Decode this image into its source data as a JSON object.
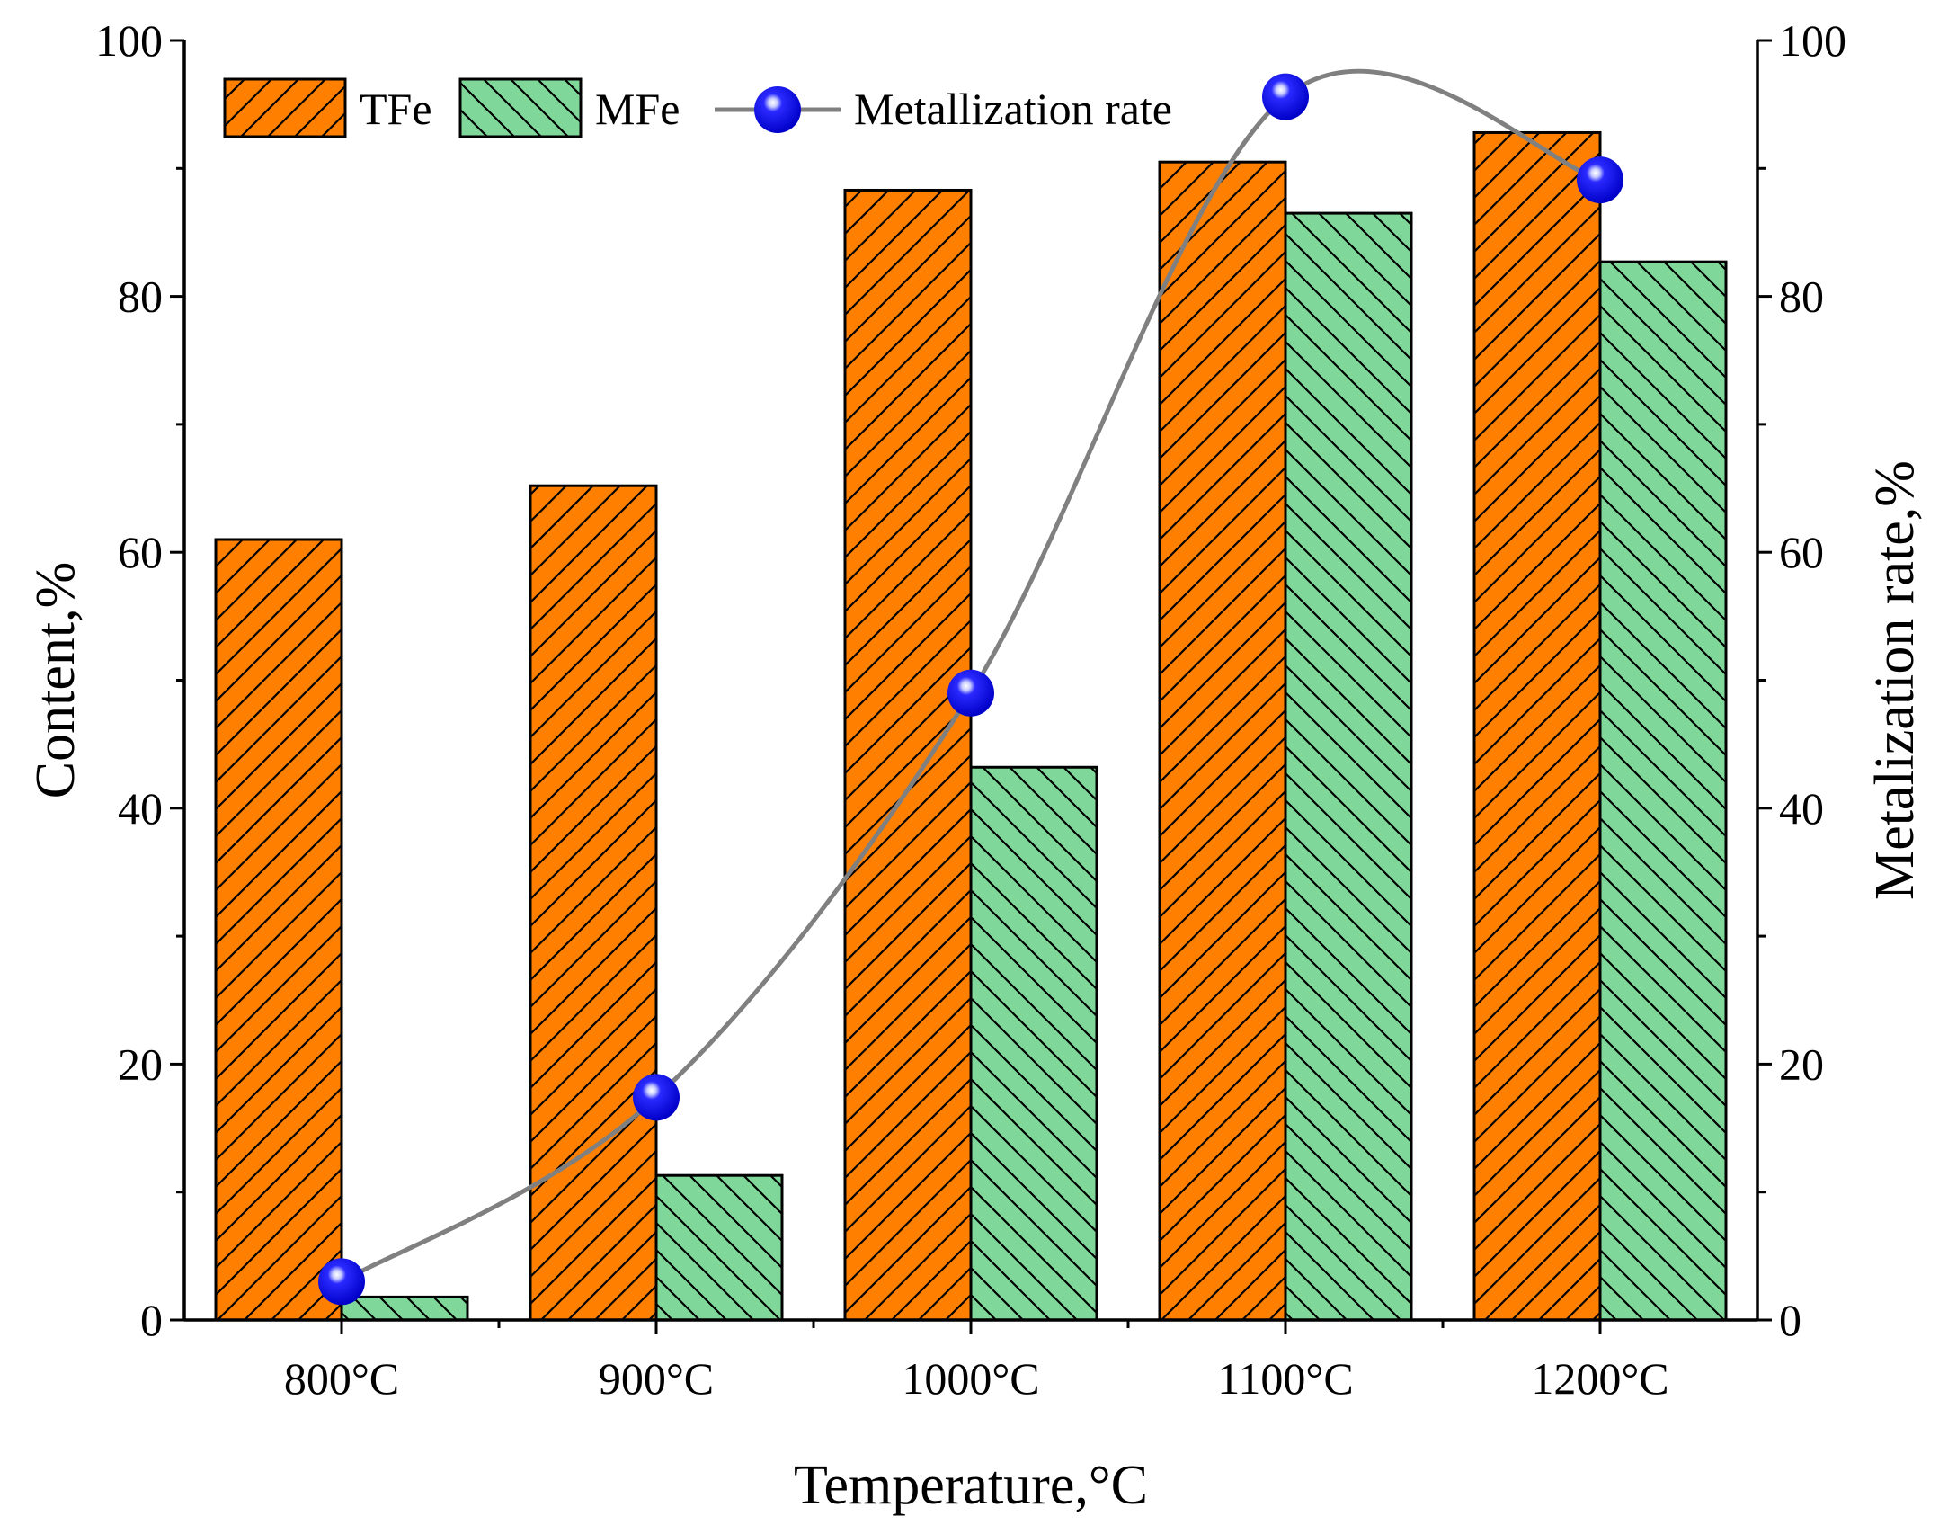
{
  "chart_data": {
    "type": "bar",
    "categories": [
      "800°C",
      "900°C",
      "1000°C",
      "1100°C",
      "1200°C"
    ],
    "series": [
      {
        "name": "TFe",
        "axis": "left",
        "values": [
          61.0,
          65.2,
          88.3,
          90.5,
          92.8
        ],
        "color": "#FF8000",
        "hatch": "forward"
      },
      {
        "name": "MFe",
        "axis": "left",
        "values": [
          1.8,
          11.3,
          43.2,
          86.5,
          82.7
        ],
        "color": "#7FD89A",
        "hatch": "backward"
      },
      {
        "name": "Metallization rate",
        "type": "line",
        "axis": "right",
        "values": [
          3.0,
          17.4,
          49.0,
          95.6,
          89.1
        ],
        "line_color": "#808080",
        "marker_color": "#0000EE"
      }
    ],
    "xlabel": "Temperature,°C",
    "ylabel": "Content,%",
    "ylabel_right": "Metalization rate,%",
    "ylim": [
      0,
      100
    ],
    "ylim_right": [
      0,
      100
    ],
    "yticks": [
      0,
      20,
      40,
      60,
      80,
      100
    ],
    "yticks_right": [
      0,
      20,
      40,
      60,
      80,
      100
    ],
    "legend_position": "top-left",
    "grid": false
  }
}
